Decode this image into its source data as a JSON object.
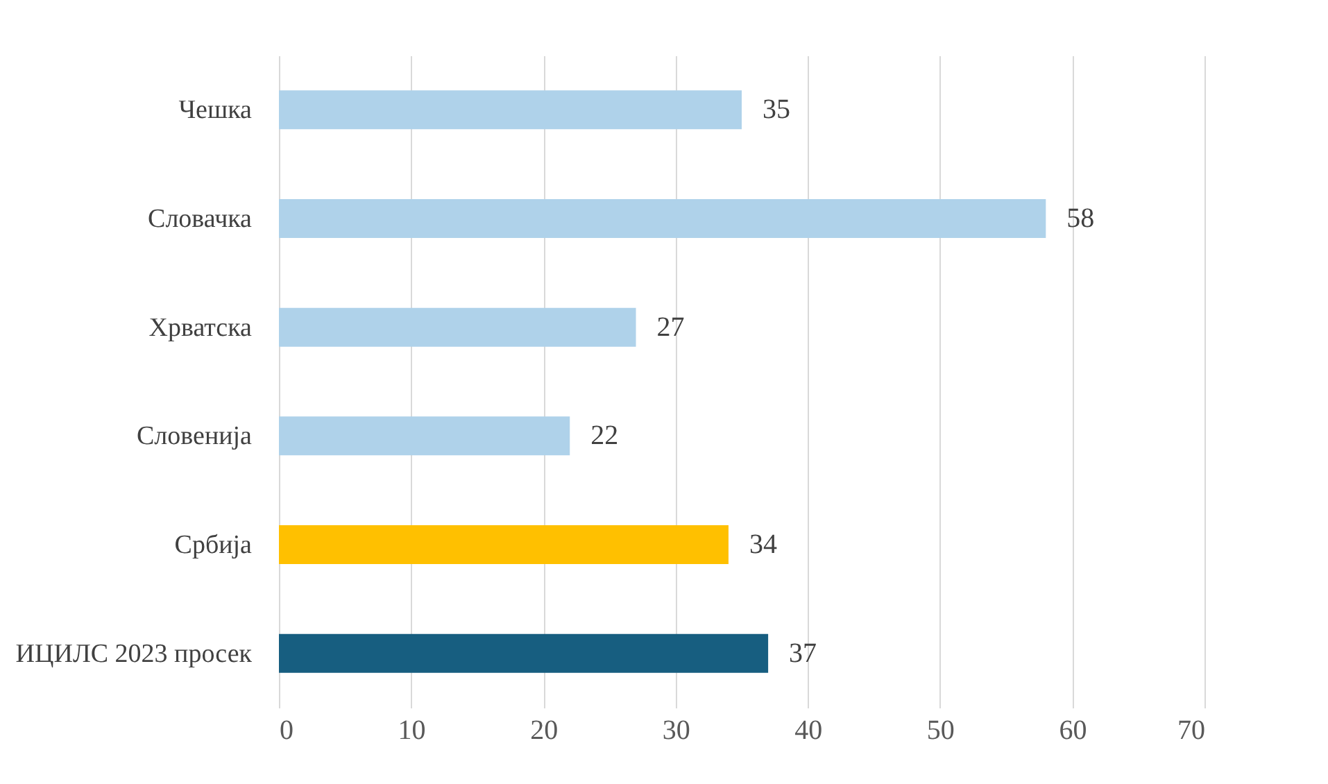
{
  "chart_data": {
    "type": "bar",
    "orientation": "horizontal",
    "categories": [
      "Чешка",
      "Словачка",
      "Хрватска",
      "Словенија",
      "Србија",
      "ИЦИЛС 2023 просек"
    ],
    "values": [
      35,
      58,
      27,
      22,
      34,
      37
    ],
    "colors": [
      "#afd2ea",
      "#afd2ea",
      "#afd2ea",
      "#afd2ea",
      "#ffc000",
      "#175e80"
    ],
    "xlim": [
      0,
      70
    ],
    "xticks": [
      0,
      10,
      20,
      30,
      40,
      50,
      60,
      70
    ],
    "grid": "x",
    "data_labels": true
  }
}
